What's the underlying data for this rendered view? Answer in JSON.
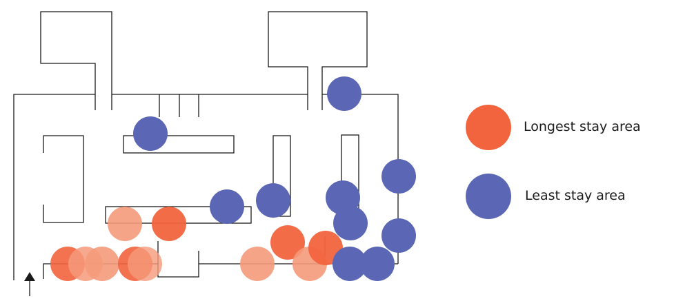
{
  "legend": {
    "longest_label": "Longest stay area",
    "least_label": "Least stay area"
  },
  "colors": {
    "longest_stay": "#F2643E",
    "longest_stay_light": "#F59A7A",
    "least_stay": "#5B67B4",
    "walls": "#1a1a1a"
  },
  "icons": {
    "entrance": "up-arrow-icon"
  }
}
